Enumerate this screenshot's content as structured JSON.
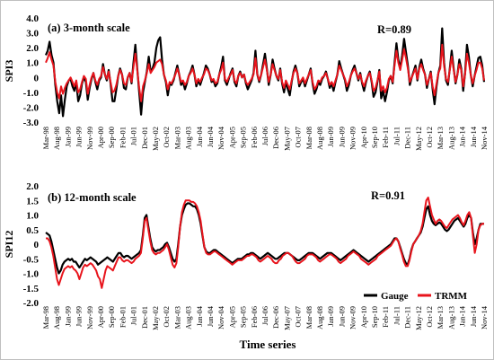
{
  "colors": {
    "gauge": "#000000",
    "trmm": "#e8141c",
    "frame": "#bfbfbf"
  },
  "x_axis": {
    "title": "Time series",
    "tick_labels": [
      "Mar-98",
      "Aug-98",
      "Jan-99",
      "Jun-99",
      "Nov-99",
      "Apr-00",
      "Sep-00",
      "Feb-01",
      "Jul-01",
      "Dec-01",
      "May-02",
      "Oct-02",
      "Mar-03",
      "Aug-03",
      "Jan-04",
      "Jun-04",
      "Nov-04",
      "Apr-05",
      "Sep-05",
      "Feb-06",
      "Jul-06",
      "Dec-06",
      "May-07",
      "Oct-07",
      "Mar-08",
      "Aug-08",
      "Jan-09",
      "Jun-09",
      "Nov-09",
      "Apr-10",
      "Sep-10",
      "Feb-11",
      "Jul-11",
      "Dec-11",
      "May-12",
      "Oct-12",
      "Mar-13",
      "Aug-13",
      "Jan-14",
      "Jun-14",
      "Nov-14"
    ]
  },
  "chart_data": [
    {
      "type": "line",
      "title": "(a) 3-month scale",
      "annotation": "R=0.89",
      "ylabel": "SPI3",
      "ylim": [
        -3.0,
        4.0
      ],
      "y_ticks": [
        "4.0",
        "3.0",
        "2.0",
        "1.0",
        "0",
        "-1.0",
        "-2.0",
        "-3.0"
      ],
      "grid": false,
      "series": [
        {
          "name": "Gauge",
          "values": [
            1.5,
            1.8,
            2.4,
            1.5,
            1.0,
            -0.5,
            -1.6,
            -2.4,
            -1.2,
            -2.6,
            -1.5,
            -0.6,
            -0.2,
            -0.1,
            -0.6,
            -0.9,
            -0.3,
            -1.6,
            -1.2,
            -0.4,
            0.0,
            -0.3,
            -1.5,
            -0.7,
            -0.1,
            0.3,
            -0.3,
            -0.8,
            -0.2,
            0.0,
            0.9,
            0.2,
            -0.2,
            0.5,
            -0.4,
            -1.6,
            -1.6,
            -0.8,
            0.1,
            0.6,
            0.2,
            -0.7,
            -0.8,
            0.0,
            0.3,
            -0.4,
            1.0,
            2.2,
            0.6,
            -1.0,
            -2.5,
            -1.0,
            -0.3,
            0.4,
            1.4,
            0.4,
            0.6,
            1.0,
            2.0,
            2.5,
            2.7,
            1.2,
            0.2,
            -0.3,
            -1.2,
            -0.4,
            -0.5,
            -0.2,
            0.3,
            0.8,
            0.2,
            -0.5,
            -0.3,
            -0.8,
            -0.4,
            0.1,
            0.4,
            0.8,
            0.2,
            -0.6,
            -0.2,
            -0.5,
            -0.1,
            0.3,
            0.8,
            0.6,
            0.2,
            -0.3,
            -0.2,
            -0.6,
            -0.4,
            0.2,
            0.7,
            1.4,
            -0.2,
            -0.5,
            -0.1,
            0.3,
            0.6,
            -0.3,
            -0.6,
            0.1,
            0.4,
            0.0,
            0.2,
            -0.4,
            -0.8,
            -0.5,
            -0.2,
            0.3,
            1.8,
            0.2,
            -0.3,
            0.2,
            0.9,
            1.6,
            0.6,
            -0.5,
            0.2,
            1.2,
            0.6,
            0.1,
            -0.2,
            0.6,
            -0.4,
            -1.0,
            -0.3,
            -0.8,
            -1.2,
            -0.3,
            0.4,
            0.8,
            0.3,
            -0.6,
            -0.3,
            -0.1,
            -0.6,
            -0.2,
            0.2,
            0.6,
            -0.4,
            -1.1,
            -0.8,
            -0.3,
            -0.5,
            -0.1,
            0.1,
            0.4,
            -0.1,
            -0.7,
            -0.4,
            -0.9,
            -0.3,
            0.2,
            1.1,
            0.6,
            0.2,
            -0.2,
            -0.9,
            -0.5,
            0.1,
            0.5,
            0.8,
            0.3,
            -0.2,
            0.3,
            -0.4,
            -0.9,
            -0.3,
            0.1,
            0.4,
            -0.3,
            -1.3,
            -1.0,
            -0.3,
            0.5,
            -1.4,
            -0.9,
            -1.6,
            -1.0,
            -0.2,
            0.1,
            -0.4,
            1.0,
            2.3,
            1.2,
            0.6,
            1.5,
            2.6,
            1.7,
            0.8,
            -0.5,
            0.0,
            0.4,
            0.8,
            -0.2,
            0.7,
            1.2,
            0.6,
            0.2,
            -0.7,
            -0.1,
            0.4,
            -0.8,
            -1.8,
            -0.6,
            0.3,
            0.8,
            3.3,
            1.0,
            -0.2,
            -0.5,
            0.6,
            1.8,
            0.6,
            -0.4,
            0.2,
            1.2,
            0.6,
            -0.9,
            0.3,
            2.2,
            1.4,
            0.2,
            -0.6,
            0.1,
            0.7,
            1.3,
            1.4,
            0.8,
            -0.3
          ]
        },
        {
          "name": "TRMM",
          "values": [
            1.0,
            1.3,
            1.7,
            1.2,
            0.8,
            -0.3,
            -1.0,
            -1.4,
            -0.6,
            -1.1,
            -0.7,
            -0.4,
            -0.2,
            0.0,
            -0.3,
            -0.6,
            -0.2,
            -1.0,
            -0.8,
            -0.3,
            0.1,
            -0.1,
            -1.1,
            -0.5,
            0.0,
            0.3,
            -0.2,
            -0.5,
            -0.1,
            0.1,
            0.7,
            0.2,
            -0.1,
            0.4,
            -0.3,
            -1.0,
            -0.9,
            -0.5,
            0.1,
            0.5,
            0.2,
            -0.4,
            -0.5,
            0.0,
            0.3,
            -0.3,
            0.7,
            1.6,
            0.5,
            -0.7,
            -1.6,
            -0.6,
            -0.2,
            0.3,
            0.9,
            0.3,
            0.5,
            0.7,
            1.0,
            1.1,
            1.2,
            0.9,
            0.2,
            -0.2,
            -0.8,
            -0.3,
            -0.4,
            -0.1,
            0.2,
            0.6,
            0.2,
            -0.3,
            -0.2,
            -0.5,
            -0.3,
            0.1,
            0.3,
            0.6,
            0.2,
            -0.4,
            -0.1,
            -0.3,
            0.0,
            0.2,
            0.6,
            0.5,
            0.2,
            -0.2,
            -0.1,
            -0.4,
            -0.3,
            0.2,
            0.5,
            1.0,
            -0.1,
            -0.3,
            0.0,
            0.2,
            0.5,
            -0.2,
            -0.4,
            0.1,
            0.3,
            0.0,
            0.2,
            -0.3,
            -0.5,
            -0.3,
            -0.1,
            0.2,
            1.3,
            0.2,
            -0.2,
            0.2,
            0.7,
            1.2,
            0.5,
            -0.3,
            0.2,
            0.9,
            0.5,
            0.1,
            -0.1,
            0.5,
            -0.3,
            -0.7,
            -0.2,
            -0.5,
            -0.8,
            -0.2,
            0.3,
            0.6,
            0.3,
            -0.4,
            -0.2,
            0.0,
            -0.4,
            -0.1,
            0.2,
            0.5,
            -0.3,
            -0.8,
            -0.6,
            -0.2,
            -0.3,
            0.0,
            0.1,
            0.3,
            -0.1,
            -0.5,
            -0.3,
            -0.6,
            -0.2,
            0.2,
            0.8,
            0.5,
            0.2,
            -0.1,
            -0.6,
            -0.3,
            0.1,
            0.4,
            0.6,
            0.3,
            -0.1,
            0.2,
            -0.3,
            -0.6,
            -0.2,
            0.1,
            0.3,
            -0.2,
            -0.9,
            -0.7,
            -0.2,
            0.4,
            -0.9,
            -0.6,
            -1.0,
            -0.7,
            -0.1,
            0.1,
            -0.3,
            0.8,
            1.8,
            1.0,
            0.5,
            1.2,
            1.9,
            1.3,
            0.6,
            -0.3,
            0.0,
            0.3,
            0.6,
            -0.1,
            0.6,
            0.9,
            0.5,
            0.2,
            -0.5,
            -0.1,
            0.3,
            -0.6,
            -1.2,
            -0.4,
            0.3,
            0.6,
            2.2,
            0.8,
            -0.1,
            -0.3,
            0.5,
            1.4,
            0.5,
            -0.3,
            0.2,
            0.9,
            0.5,
            -0.6,
            0.2,
            1.6,
            1.0,
            0.2,
            -0.4,
            0.1,
            0.5,
            1.0,
            1.0,
            0.6,
            -0.2
          ]
        }
      ]
    },
    {
      "type": "line",
      "title": "(b) 12-month scale",
      "annotation": "R=0.91",
      "ylabel": "SPI12",
      "ylim": [
        -2.0,
        2.0
      ],
      "y_ticks": [
        "2.0",
        "1.5",
        "1.0",
        "0.5",
        "0",
        "-0.5",
        "-1.0",
        "-1.5",
        "-2.0"
      ],
      "grid": false,
      "legend_position": "bottom-right",
      "series": [
        {
          "name": "Gauge",
          "values": [
            0.4,
            0.35,
            0.3,
            0.1,
            -0.2,
            -0.5,
            -0.8,
            -1.0,
            -0.9,
            -0.7,
            -0.6,
            -0.55,
            -0.5,
            -0.55,
            -0.5,
            -0.6,
            -0.6,
            -0.7,
            -0.8,
            -0.7,
            -0.6,
            -0.5,
            -0.55,
            -0.5,
            -0.45,
            -0.5,
            -0.55,
            -0.6,
            -0.7,
            -0.65,
            -0.6,
            -0.55,
            -0.5,
            -0.45,
            -0.5,
            -0.55,
            -0.6,
            -0.5,
            -0.4,
            -0.3,
            -0.3,
            -0.4,
            -0.45,
            -0.4,
            -0.4,
            -0.45,
            -0.5,
            -0.45,
            -0.4,
            -0.35,
            -0.3,
            -0.2,
            0.3,
            0.9,
            1.0,
            0.6,
            0.2,
            -0.1,
            -0.2,
            -0.25,
            -0.2,
            -0.2,
            -0.15,
            -0.1,
            0.0,
            0.05,
            -0.1,
            -0.3,
            -0.5,
            -0.6,
            -0.5,
            0.0,
            0.6,
            1.0,
            1.2,
            1.35,
            1.4,
            1.4,
            1.35,
            1.3,
            1.3,
            1.2,
            1.0,
            0.7,
            0.3,
            -0.1,
            -0.25,
            -0.3,
            -0.3,
            -0.25,
            -0.2,
            -0.2,
            -0.25,
            -0.3,
            -0.35,
            -0.4,
            -0.45,
            -0.5,
            -0.55,
            -0.6,
            -0.65,
            -0.6,
            -0.55,
            -0.5,
            -0.5,
            -0.5,
            -0.45,
            -0.4,
            -0.35,
            -0.35,
            -0.3,
            -0.3,
            -0.35,
            -0.4,
            -0.45,
            -0.5,
            -0.45,
            -0.4,
            -0.35,
            -0.3,
            -0.35,
            -0.4,
            -0.45,
            -0.5,
            -0.5,
            -0.45,
            -0.4,
            -0.35,
            -0.3,
            -0.3,
            -0.3,
            -0.35,
            -0.4,
            -0.45,
            -0.5,
            -0.55,
            -0.55,
            -0.5,
            -0.45,
            -0.4,
            -0.35,
            -0.3,
            -0.3,
            -0.3,
            -0.35,
            -0.4,
            -0.45,
            -0.5,
            -0.45,
            -0.4,
            -0.35,
            -0.3,
            -0.3,
            -0.3,
            -0.35,
            -0.4,
            -0.45,
            -0.5,
            -0.55,
            -0.5,
            -0.45,
            -0.4,
            -0.35,
            -0.3,
            -0.25,
            -0.2,
            -0.25,
            -0.3,
            -0.35,
            -0.4,
            -0.45,
            -0.5,
            -0.55,
            -0.6,
            -0.55,
            -0.5,
            -0.45,
            -0.4,
            -0.35,
            -0.3,
            -0.25,
            -0.2,
            -0.15,
            -0.1,
            -0.05,
            0.0,
            0.1,
            0.2,
            0.2,
            0.1,
            -0.1,
            -0.3,
            -0.5,
            -0.65,
            -0.7,
            -0.5,
            -0.2,
            0.0,
            0.1,
            0.2,
            0.3,
            0.4,
            0.6,
            0.9,
            1.2,
            1.3,
            1.0,
            0.8,
            0.7,
            0.65,
            0.7,
            0.75,
            0.7,
            0.6,
            0.5,
            0.45,
            0.5,
            0.6,
            0.7,
            0.8,
            0.85,
            0.9,
            0.8,
            0.7,
            0.6,
            0.7,
            0.9,
            1.0,
            0.9,
            0.4,
            0.0,
            0.2,
            0.5,
            0.7,
            0.7,
            0.7
          ]
        },
        {
          "name": "TRMM",
          "values": [
            0.2,
            0.2,
            0.1,
            -0.1,
            -0.4,
            -0.8,
            -1.2,
            -1.4,
            -1.2,
            -1.0,
            -0.85,
            -0.8,
            -0.75,
            -0.8,
            -0.75,
            -0.85,
            -0.9,
            -1.0,
            -1.2,
            -1.0,
            -0.8,
            -0.7,
            -0.75,
            -0.7,
            -0.65,
            -0.7,
            -0.8,
            -0.9,
            -1.1,
            -1.2,
            -1.5,
            -1.2,
            -0.9,
            -0.75,
            -0.8,
            -0.85,
            -0.9,
            -0.75,
            -0.6,
            -0.45,
            -0.45,
            -0.55,
            -0.6,
            -0.55,
            -0.55,
            -0.6,
            -0.65,
            -0.6,
            -0.5,
            -0.45,
            -0.4,
            -0.3,
            0.2,
            0.8,
            0.9,
            0.5,
            0.1,
            -0.2,
            -0.3,
            -0.35,
            -0.3,
            -0.3,
            -0.25,
            -0.2,
            -0.1,
            0.0,
            -0.2,
            -0.45,
            -0.7,
            -0.8,
            -0.65,
            -0.1,
            0.6,
            1.1,
            1.35,
            1.5,
            1.5,
            1.5,
            1.45,
            1.45,
            1.4,
            1.3,
            1.1,
            0.8,
            0.35,
            -0.1,
            -0.3,
            -0.35,
            -0.35,
            -0.3,
            -0.25,
            -0.25,
            -0.3,
            -0.35,
            -0.4,
            -0.45,
            -0.5,
            -0.55,
            -0.6,
            -0.65,
            -0.7,
            -0.65,
            -0.6,
            -0.55,
            -0.55,
            -0.55,
            -0.5,
            -0.45,
            -0.4,
            -0.4,
            -0.35,
            -0.35,
            -0.4,
            -0.45,
            -0.55,
            -0.6,
            -0.55,
            -0.5,
            -0.45,
            -0.4,
            -0.45,
            -0.5,
            -0.6,
            -0.65,
            -0.65,
            -0.55,
            -0.5,
            -0.4,
            -0.35,
            -0.3,
            -0.3,
            -0.35,
            -0.4,
            -0.5,
            -0.6,
            -0.65,
            -0.65,
            -0.6,
            -0.55,
            -0.5,
            -0.4,
            -0.35,
            -0.35,
            -0.35,
            -0.4,
            -0.45,
            -0.55,
            -0.6,
            -0.55,
            -0.5,
            -0.45,
            -0.4,
            -0.35,
            -0.35,
            -0.4,
            -0.45,
            -0.5,
            -0.6,
            -0.65,
            -0.6,
            -0.55,
            -0.5,
            -0.4,
            -0.35,
            -0.3,
            -0.25,
            -0.3,
            -0.35,
            -0.4,
            -0.5,
            -0.55,
            -0.6,
            -0.65,
            -0.7,
            -0.65,
            -0.6,
            -0.55,
            -0.5,
            -0.4,
            -0.35,
            -0.3,
            -0.25,
            -0.2,
            -0.15,
            -0.1,
            -0.05,
            0.05,
            0.15,
            0.2,
            0.1,
            -0.15,
            -0.35,
            -0.6,
            -0.75,
            -0.75,
            -0.55,
            -0.25,
            0.0,
            0.1,
            0.2,
            0.3,
            0.45,
            0.7,
            1.1,
            1.5,
            1.6,
            1.3,
            1.0,
            0.85,
            0.7,
            0.8,
            0.85,
            0.8,
            0.7,
            0.6,
            0.55,
            0.65,
            0.75,
            0.85,
            0.9,
            0.95,
            1.0,
            0.9,
            0.75,
            0.65,
            0.8,
            1.0,
            1.1,
            0.9,
            0.3,
            -0.3,
            0.0,
            0.5,
            0.65,
            0.7,
            0.7
          ]
        }
      ]
    }
  ]
}
